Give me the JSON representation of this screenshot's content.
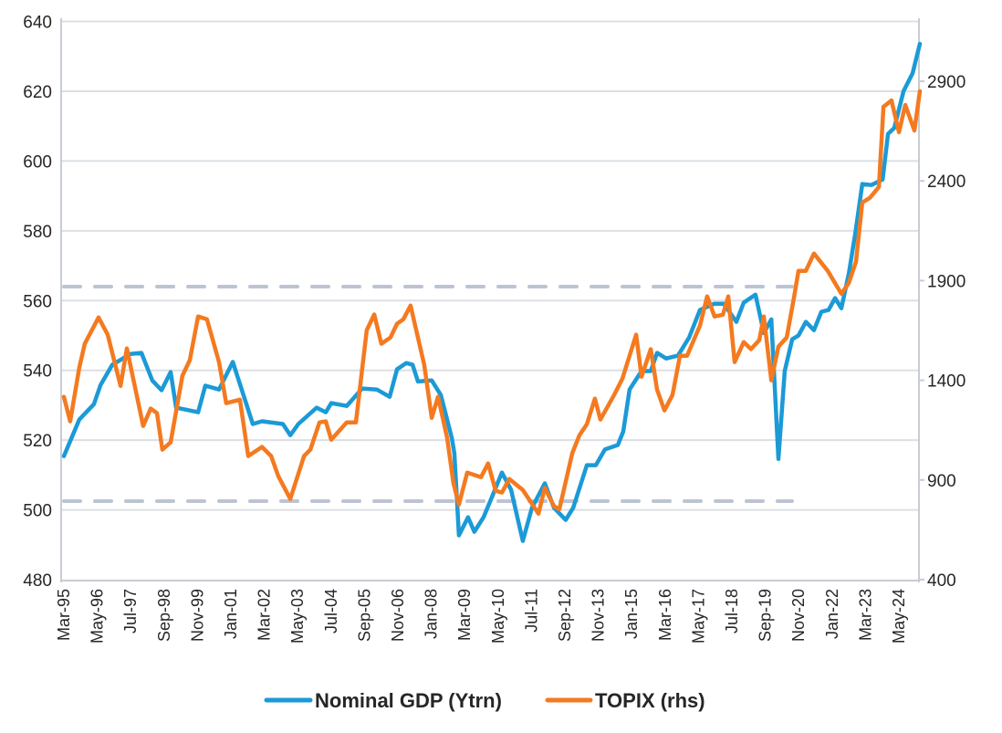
{
  "chart_data": {
    "type": "line",
    "title": "",
    "xlabel": "",
    "ylabel": "",
    "ylim": [
      480,
      640
    ],
    "y_ticks": [
      "480",
      "500",
      "520",
      "540",
      "560",
      "580",
      "600",
      "620",
      "640"
    ],
    "y2lim": [
      400,
      3200
    ],
    "y2_ticks": [
      "400",
      "900",
      "1400",
      "1900",
      "2400",
      "2900"
    ],
    "x_tick_labels": [
      "Mar-95",
      "May-96",
      "Jul-97",
      "Sep-98",
      "Nov-99",
      "Jan-01",
      "Mar-02",
      "May-03",
      "Jul-04",
      "Sep-05",
      "Nov-06",
      "Jan-08",
      "Mar-09",
      "May-10",
      "Jul-11",
      "Sep-12",
      "Nov-13",
      "Jan-15",
      "Mar-16",
      "May-17",
      "Jul-18",
      "Sep-19",
      "Nov-20",
      "Jan-22",
      "Mar-23",
      "May-24"
    ],
    "x_unit": "decimal year",
    "grid": true,
    "legend_position": "bottom",
    "reference_lines": [
      {
        "axis": "left",
        "value": 564,
        "style": "dashed"
      },
      {
        "axis": "left",
        "value": 502.5,
        "style": "dashed"
      }
    ],
    "series": [
      {
        "name": "Nominal GDP (Ytrn)",
        "axis": "left",
        "color": "#1b9ad6",
        "points": [
          [
            1995.17,
            515.4
          ],
          [
            1995.71,
            525.9
          ],
          [
            1996.22,
            530.3
          ],
          [
            1996.45,
            535.8
          ],
          [
            1996.86,
            541.6
          ],
          [
            1997.5,
            544.7
          ],
          [
            1997.88,
            545.0
          ],
          [
            1998.26,
            537.1
          ],
          [
            1998.58,
            534.3
          ],
          [
            1998.9,
            539.5
          ],
          [
            1999.09,
            529.3
          ],
          [
            1999.86,
            528.0
          ],
          [
            2000.11,
            535.6
          ],
          [
            2000.59,
            534.5
          ],
          [
            2001.07,
            542.4
          ],
          [
            2001.77,
            524.6
          ],
          [
            2002.09,
            525.4
          ],
          [
            2002.82,
            524.6
          ],
          [
            2003.08,
            521.4
          ],
          [
            2003.36,
            524.6
          ],
          [
            2004.0,
            529.3
          ],
          [
            2004.32,
            528.0
          ],
          [
            2004.51,
            530.6
          ],
          [
            2005.05,
            529.8
          ],
          [
            2005.59,
            534.8
          ],
          [
            2006.1,
            534.5
          ],
          [
            2006.55,
            532.4
          ],
          [
            2006.81,
            540.3
          ],
          [
            2007.13,
            542.1
          ],
          [
            2007.35,
            541.6
          ],
          [
            2007.54,
            536.8
          ],
          [
            2008.02,
            537.1
          ],
          [
            2008.34,
            532.9
          ],
          [
            2008.72,
            520.6
          ],
          [
            2008.81,
            516.2
          ],
          [
            2008.97,
            492.7
          ],
          [
            2009.29,
            497.9
          ],
          [
            2009.51,
            493.7
          ],
          [
            2009.83,
            497.9
          ],
          [
            2010.15,
            504.2
          ],
          [
            2010.47,
            510.7
          ],
          [
            2010.79,
            505.8
          ],
          [
            2011.2,
            491.1
          ],
          [
            2011.52,
            500.6
          ],
          [
            2011.97,
            507.6
          ],
          [
            2012.29,
            500.6
          ],
          [
            2012.7,
            497.1
          ],
          [
            2012.96,
            500.6
          ],
          [
            2013.44,
            512.8
          ],
          [
            2013.75,
            512.8
          ],
          [
            2014.07,
            517.3
          ],
          [
            2014.52,
            518.6
          ],
          [
            2014.71,
            522.5
          ],
          [
            2014.93,
            534.5
          ],
          [
            2015.35,
            539.8
          ],
          [
            2015.67,
            539.8
          ],
          [
            2015.89,
            545.0
          ],
          [
            2016.21,
            543.4
          ],
          [
            2016.62,
            544.2
          ],
          [
            2017.01,
            549.4
          ],
          [
            2017.39,
            557.3
          ],
          [
            2017.9,
            559.1
          ],
          [
            2018.22,
            559.1
          ],
          [
            2018.66,
            553.9
          ],
          [
            2018.92,
            559.4
          ],
          [
            2019.33,
            561.7
          ],
          [
            2019.62,
            550.7
          ],
          [
            2019.88,
            554.6
          ],
          [
            2020.13,
            514.6
          ],
          [
            2020.35,
            539.8
          ],
          [
            2020.61,
            548.9
          ],
          [
            2020.83,
            550.0
          ],
          [
            2021.09,
            553.9
          ],
          [
            2021.37,
            551.5
          ],
          [
            2021.63,
            556.8
          ],
          [
            2021.88,
            557.3
          ],
          [
            2022.11,
            560.7
          ],
          [
            2022.33,
            557.8
          ],
          [
            2022.59,
            567.8
          ],
          [
            2022.81,
            579.0
          ],
          [
            2023.06,
            593.4
          ],
          [
            2023.38,
            593.1
          ],
          [
            2023.77,
            594.7
          ],
          [
            2023.96,
            607.8
          ],
          [
            2024.18,
            609.5
          ],
          [
            2024.5,
            620.0
          ],
          [
            2024.82,
            625.2
          ],
          [
            2025.07,
            633.6
          ]
        ]
      },
      {
        "name": "TOPIX (rhs)",
        "axis": "right",
        "color": "#f47a20",
        "points": [
          [
            1995.17,
            1317
          ],
          [
            1995.39,
            1194
          ],
          [
            1995.71,
            1464
          ],
          [
            1995.9,
            1583
          ],
          [
            1996.38,
            1715
          ],
          [
            1996.7,
            1629
          ],
          [
            1997.15,
            1372
          ],
          [
            1997.37,
            1560
          ],
          [
            1997.94,
            1171
          ],
          [
            1998.2,
            1258
          ],
          [
            1998.42,
            1235
          ],
          [
            1998.61,
            1052
          ],
          [
            1998.9,
            1089
          ],
          [
            1999.31,
            1423
          ],
          [
            1999.57,
            1501
          ],
          [
            1999.86,
            1720
          ],
          [
            2000.17,
            1706
          ],
          [
            2000.59,
            1491
          ],
          [
            2000.84,
            1285
          ],
          [
            2001.32,
            1303
          ],
          [
            2001.61,
            1020
          ],
          [
            2002.09,
            1066
          ],
          [
            2002.41,
            1020
          ],
          [
            2002.66,
            919
          ],
          [
            2003.08,
            805
          ],
          [
            2003.56,
            1020
          ],
          [
            2003.78,
            1052
          ],
          [
            2004.1,
            1189
          ],
          [
            2004.32,
            1194
          ],
          [
            2004.51,
            1102
          ],
          [
            2005.05,
            1189
          ],
          [
            2005.37,
            1189
          ],
          [
            2005.75,
            1652
          ],
          [
            2006.01,
            1730
          ],
          [
            2006.26,
            1583
          ],
          [
            2006.58,
            1615
          ],
          [
            2006.81,
            1684
          ],
          [
            2007.03,
            1706
          ],
          [
            2007.28,
            1775
          ],
          [
            2007.76,
            1477
          ],
          [
            2008.02,
            1212
          ],
          [
            2008.24,
            1317
          ],
          [
            2008.56,
            1111
          ],
          [
            2008.78,
            883
          ],
          [
            2008.97,
            777
          ],
          [
            2009.26,
            937
          ],
          [
            2009.74,
            914
          ],
          [
            2009.99,
            983
          ],
          [
            2010.25,
            846
          ],
          [
            2010.47,
            837
          ],
          [
            2010.73,
            905
          ],
          [
            2011.2,
            850
          ],
          [
            2011.75,
            731
          ],
          [
            2011.97,
            860
          ],
          [
            2012.29,
            768
          ],
          [
            2012.48,
            754
          ],
          [
            2012.93,
            1034
          ],
          [
            2013.18,
            1125
          ],
          [
            2013.44,
            1180
          ],
          [
            2013.72,
            1308
          ],
          [
            2013.91,
            1203
          ],
          [
            2014.39,
            1326
          ],
          [
            2014.68,
            1408
          ],
          [
            2015.16,
            1629
          ],
          [
            2015.35,
            1418
          ],
          [
            2015.67,
            1556
          ],
          [
            2015.89,
            1354
          ],
          [
            2016.15,
            1249
          ],
          [
            2016.43,
            1326
          ],
          [
            2016.69,
            1523
          ],
          [
            2016.94,
            1523
          ],
          [
            2017.39,
            1674
          ],
          [
            2017.64,
            1821
          ],
          [
            2017.9,
            1720
          ],
          [
            2018.19,
            1729
          ],
          [
            2018.38,
            1821
          ],
          [
            2018.6,
            1491
          ],
          [
            2018.92,
            1592
          ],
          [
            2019.17,
            1556
          ],
          [
            2019.46,
            1601
          ],
          [
            2019.62,
            1720
          ],
          [
            2019.88,
            1400
          ],
          [
            2020.13,
            1569
          ],
          [
            2020.42,
            1615
          ],
          [
            2020.67,
            1811
          ],
          [
            2020.83,
            1949
          ],
          [
            2021.09,
            1949
          ],
          [
            2021.37,
            2036
          ],
          [
            2021.85,
            1949
          ],
          [
            2022.33,
            1834
          ],
          [
            2022.59,
            1889
          ],
          [
            2022.84,
            1995
          ],
          [
            2023.06,
            2292
          ],
          [
            2023.32,
            2315
          ],
          [
            2023.64,
            2370
          ],
          [
            2023.8,
            2772
          ],
          [
            2024.08,
            2804
          ],
          [
            2024.34,
            2644
          ],
          [
            2024.56,
            2781
          ],
          [
            2024.88,
            2653
          ],
          [
            2025.07,
            2850
          ]
        ]
      }
    ]
  }
}
